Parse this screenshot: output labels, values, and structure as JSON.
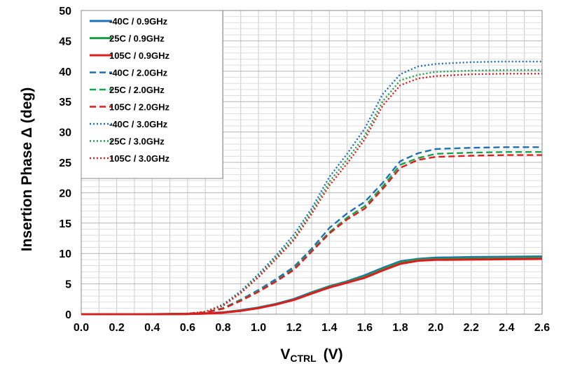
{
  "colors": {
    "c40": "#1f6fb6",
    "c25": "#1aa14a",
    "c105": "#e01b1b"
  },
  "chart_data": {
    "type": "line",
    "title": "",
    "xlabel_main": "V",
    "xlabel_sub": "CTRL",
    "xlabel_unit": "(V)",
    "ylabel": "Insertion Phase Δ  (deg)",
    "xlim": [
      0,
      2.6
    ],
    "ylim": [
      0,
      50
    ],
    "grid": true,
    "legend_position": "top-left",
    "x_ticks": [
      0.0,
      0.2,
      0.4,
      0.6,
      0.8,
      1.0,
      1.2,
      1.4,
      1.6,
      1.8,
      2.0,
      2.2,
      2.4,
      2.6
    ],
    "x_tick_labels": [
      "0.0",
      "0.2",
      "0.4",
      "0.6",
      "0.8",
      "1.0",
      "1.2",
      "1.4",
      "1.6",
      "1.8",
      "2.0",
      "2.2",
      "2.4",
      "2.6"
    ],
    "y_ticks": [
      0,
      5,
      10,
      15,
      20,
      25,
      30,
      35,
      40,
      45,
      50
    ],
    "y_tick_labels": [
      "0",
      "5",
      "10",
      "15",
      "20",
      "25",
      "30",
      "35",
      "40",
      "45",
      "50"
    ],
    "x": [
      0,
      0.2,
      0.4,
      0.6,
      0.7,
      0.8,
      0.9,
      1.0,
      1.1,
      1.2,
      1.3,
      1.4,
      1.5,
      1.6,
      1.7,
      1.8,
      1.9,
      2.0,
      2.2,
      2.4,
      2.6
    ],
    "series": [
      {
        "name": "-40C /  0.9GHz",
        "color_key": "c40",
        "dash": "solid",
        "values": [
          0,
          0,
          0,
          0.05,
          0.15,
          0.3,
          0.65,
          1.1,
          1.7,
          2.5,
          3.6,
          4.6,
          5.4,
          6.4,
          7.6,
          8.7,
          9.1,
          9.3,
          9.4,
          9.45,
          9.5
        ]
      },
      {
        "name": "25C /  0.9GHz",
        "color_key": "c25",
        "dash": "solid",
        "values": [
          0,
          0,
          0,
          0.05,
          0.12,
          0.28,
          0.6,
          1.05,
          1.65,
          2.4,
          3.5,
          4.5,
          5.3,
          6.2,
          7.4,
          8.5,
          9.0,
          9.1,
          9.2,
          9.25,
          9.3
        ]
      },
      {
        "name": "105C /  0.9GHz",
        "color_key": "c105",
        "dash": "solid",
        "values": [
          0,
          0,
          0,
          0.04,
          0.1,
          0.25,
          0.55,
          1.0,
          1.6,
          2.35,
          3.4,
          4.4,
          5.2,
          6.0,
          7.2,
          8.3,
          8.8,
          8.95,
          9.0,
          9.05,
          9.1
        ]
      },
      {
        "name": "-40C /  2.0GHz",
        "color_key": "c40",
        "dash": "dash",
        "values": [
          0,
          0,
          0,
          0.1,
          0.3,
          1.0,
          2.4,
          4.0,
          5.8,
          7.8,
          10.8,
          14.2,
          16.6,
          18.5,
          21.6,
          25.2,
          26.5,
          27.2,
          27.4,
          27.5,
          27.5
        ]
      },
      {
        "name": "25C /  2.0GHz",
        "color_key": "c25",
        "dash": "dash",
        "values": [
          0,
          0,
          0,
          0.1,
          0.3,
          0.95,
          2.3,
          3.8,
          5.5,
          7.5,
          10.5,
          13.5,
          15.9,
          17.8,
          21.0,
          24.6,
          25.7,
          26.4,
          26.6,
          26.7,
          26.7
        ]
      },
      {
        "name": "105C /  2.0GHz",
        "color_key": "c105",
        "dash": "dash",
        "values": [
          0,
          0,
          0,
          0.1,
          0.3,
          0.9,
          2.2,
          3.7,
          5.4,
          7.3,
          10.3,
          13.3,
          15.6,
          17.4,
          20.6,
          24.1,
          25.4,
          25.9,
          26.1,
          26.2,
          26.2
        ]
      },
      {
        "name": "-40C /  3.0GHz",
        "color_key": "c40",
        "dash": "dot",
        "values": [
          0,
          0,
          0,
          0.1,
          0.4,
          1.6,
          3.8,
          6.6,
          9.7,
          13.1,
          17.4,
          22.6,
          26.4,
          30.6,
          36.2,
          39.5,
          40.8,
          41.2,
          41.5,
          41.6,
          41.6
        ]
      },
      {
        "name": "25C /  3.0GHz",
        "color_key": "c25",
        "dash": "dot",
        "values": [
          0,
          0,
          0,
          0.1,
          0.4,
          1.5,
          3.6,
          6.3,
          9.4,
          12.5,
          16.9,
          21.8,
          25.5,
          29.4,
          35.0,
          38.5,
          39.4,
          39.9,
          40.1,
          40.2,
          40.2
        ]
      },
      {
        "name": "105C /  3.0GHz",
        "color_key": "c105",
        "dash": "dot",
        "values": [
          0,
          0,
          0,
          0.1,
          0.4,
          1.4,
          3.5,
          6.1,
          9.1,
          12.2,
          16.5,
          21.2,
          24.8,
          28.8,
          34.3,
          37.7,
          38.8,
          39.2,
          39.5,
          39.6,
          39.6
        ]
      }
    ]
  }
}
